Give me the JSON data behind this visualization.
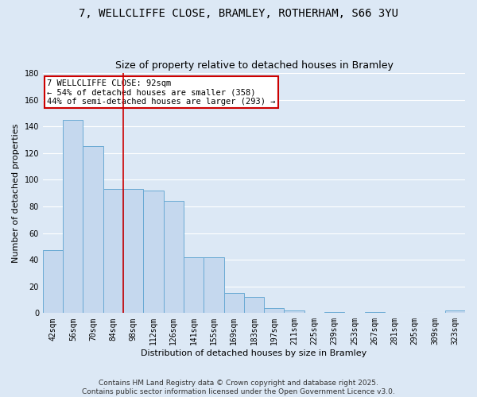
{
  "title": "7, WELLCLIFFE CLOSE, BRAMLEY, ROTHERHAM, S66 3YU",
  "subtitle": "Size of property relative to detached houses in Bramley",
  "xlabel": "Distribution of detached houses by size in Bramley",
  "ylabel": "Number of detached properties",
  "categories": [
    "42sqm",
    "56sqm",
    "70sqm",
    "84sqm",
    "98sqm",
    "112sqm",
    "126sqm",
    "141sqm",
    "155sqm",
    "169sqm",
    "183sqm",
    "197sqm",
    "211sqm",
    "225sqm",
    "239sqm",
    "253sqm",
    "267sqm",
    "281sqm",
    "295sqm",
    "309sqm",
    "323sqm"
  ],
  "values": [
    47,
    145,
    125,
    93,
    93,
    92,
    84,
    42,
    42,
    15,
    12,
    4,
    2,
    0,
    1,
    0,
    1,
    0,
    0,
    0,
    2
  ],
  "bar_color": "#c5d8ee",
  "bar_edge_color": "#6aaad4",
  "background_color": "#dce8f5",
  "grid_color": "#ffffff",
  "annotation_line1": "7 WELLCLIFFE CLOSE: 92sqm",
  "annotation_line2": "← 54% of detached houses are smaller (358)",
  "annotation_line3": "44% of semi-detached houses are larger (293) →",
  "annotation_box_color": "#ffffff",
  "annotation_box_edge_color": "#cc0000",
  "vline_color": "#cc0000",
  "vline_index": 3.5,
  "ylim": [
    0,
    180
  ],
  "yticks": [
    0,
    20,
    40,
    60,
    80,
    100,
    120,
    140,
    160,
    180
  ],
  "footer": "Contains HM Land Registry data © Crown copyright and database right 2025.\nContains public sector information licensed under the Open Government Licence v3.0.",
  "title_fontsize": 10,
  "subtitle_fontsize": 9,
  "axis_label_fontsize": 8,
  "tick_fontsize": 7,
  "annotation_fontsize": 7.5,
  "footer_fontsize": 6.5
}
